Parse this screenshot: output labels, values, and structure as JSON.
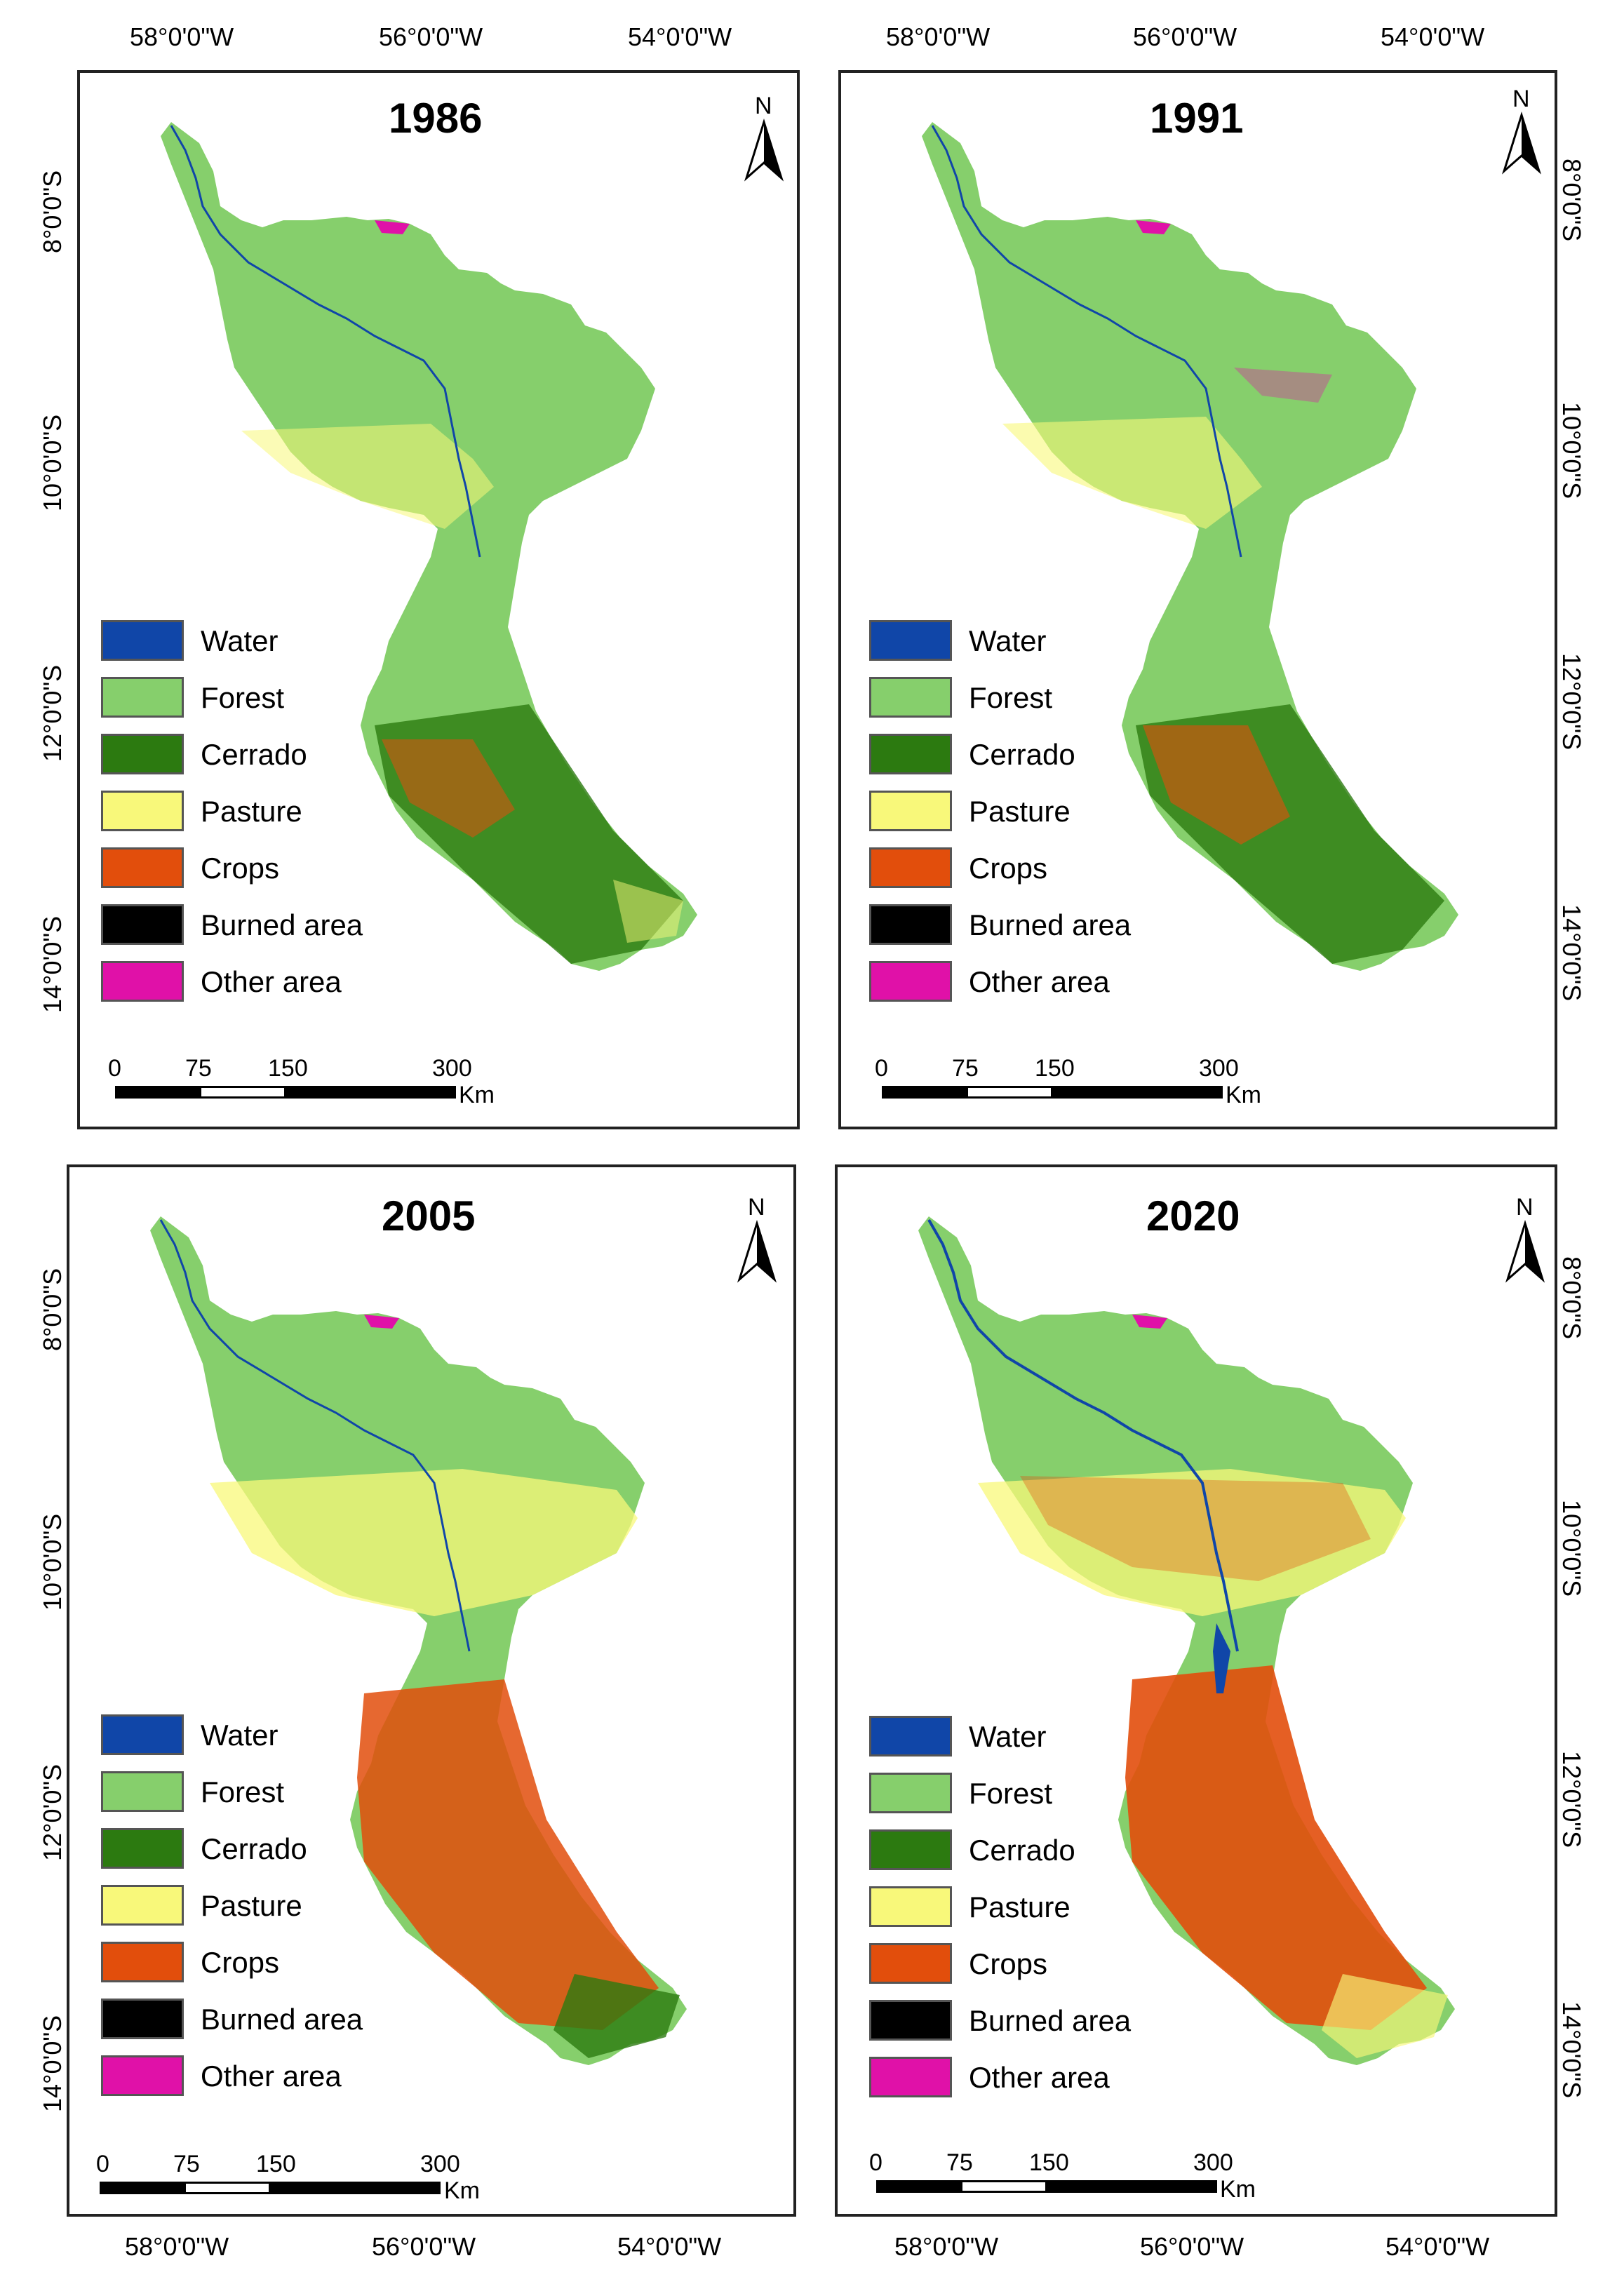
{
  "coordinates": {
    "lon_labels": [
      "58°0'0\"W",
      "56°0'0\"W",
      "54°0'0\"W"
    ],
    "lat_labels": [
      "8°0'0\"S",
      "10°0'0\"S",
      "12°0'0\"S",
      "14°0'0\"S"
    ]
  },
  "colors": {
    "water": "#1046a8",
    "forest": "#86cf6c",
    "cerrado": "#2c7a10",
    "pasture": "#f8f87a",
    "crops": "#e24e0c",
    "burned": "#000000",
    "other": "#e011a8"
  },
  "north_label": "N",
  "scale": {
    "ticks": [
      "0",
      "75",
      "150",
      "300"
    ],
    "unit": "Km"
  },
  "legend": [
    {
      "label": "Water",
      "color_key": "water"
    },
    {
      "label": "Forest",
      "color_key": "forest"
    },
    {
      "label": "Cerrado",
      "color_key": "cerrado"
    },
    {
      "label": "Pasture",
      "color_key": "pasture"
    },
    {
      "label": "Crops",
      "color_key": "crops"
    },
    {
      "label": "Burned area",
      "color_key": "burned"
    },
    {
      "label": "Other area",
      "color_key": "other"
    }
  ],
  "panels": [
    {
      "year": "1986"
    },
    {
      "year": "1991"
    },
    {
      "year": "2005"
    },
    {
      "year": "2020"
    }
  ]
}
